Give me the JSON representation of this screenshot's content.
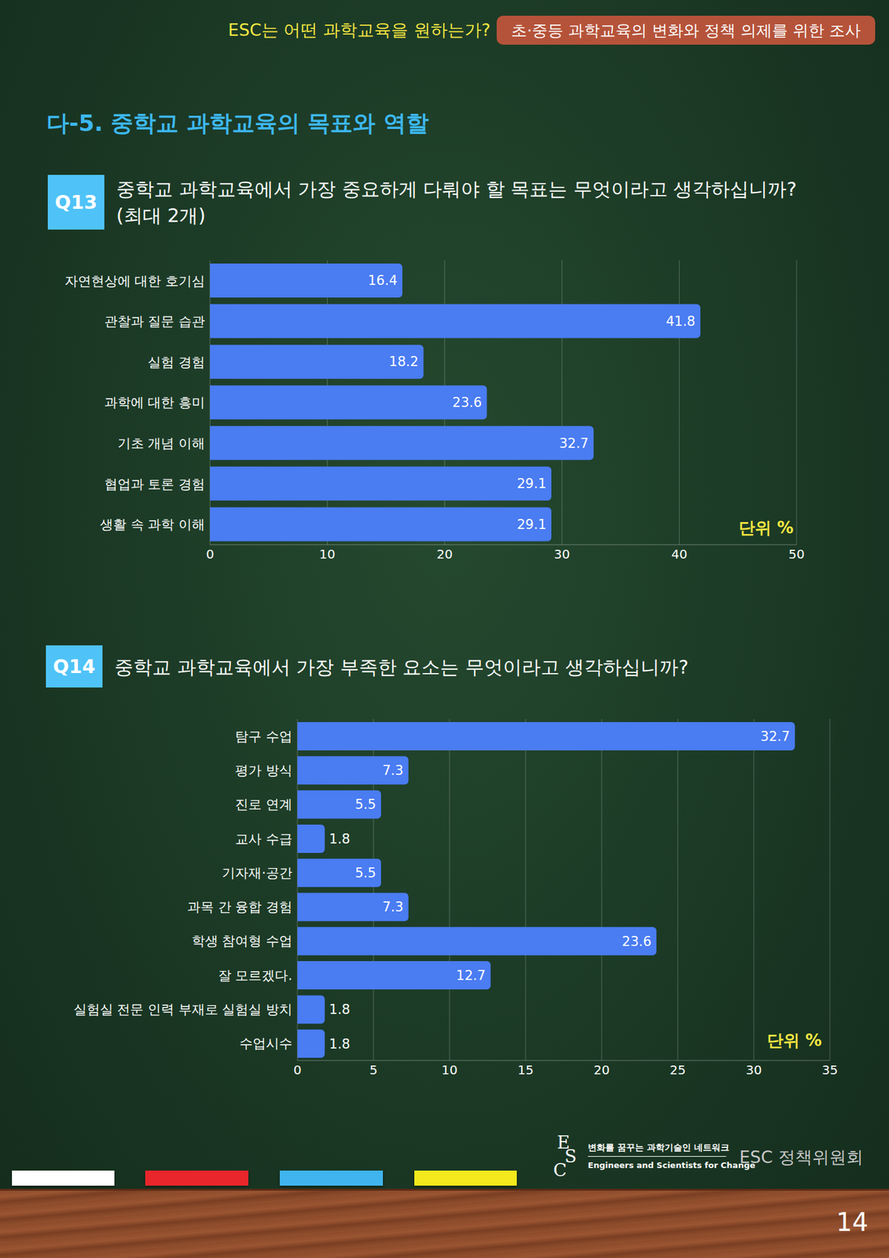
{
  "header": {
    "title": "ESC는 어떤 과학교육을 원하는가?",
    "badge": "초·중등 과학교육의 변화와 정책 의제를 위한 조사"
  },
  "section_title": "다-5. 중학교 과학교육의 목표와 역할",
  "chart_data": [
    {
      "type": "bar",
      "label": "Q13",
      "title": "중학교 과학교육에서 가장 중요하게 다뤄야 할 목표는 무엇이라고 생각하십니까?",
      "subtitle": "(최대 2개)",
      "annotations": [
        "단위 %"
      ],
      "categories": [
        "자연현상에 대한 호기심",
        "관찰과 질문 습관",
        "실험 경험",
        "과학에 대한 흥미",
        "기초 개념 이해",
        "협업과 토론 경험",
        "생활 속 과학 이해"
      ],
      "values": [
        16.4,
        41.8,
        18.2,
        23.6,
        32.7,
        29.1,
        29.1
      ],
      "color": "#4a7cf2",
      "xlim": [
        0,
        50
      ],
      "xticks": [
        0,
        10,
        20,
        30,
        40,
        50
      ],
      "grid": true,
      "orientation": "horizontal",
      "data_labels": true
    },
    {
      "type": "bar",
      "label": "Q14",
      "title": "중학교 과학교육에서 가장 부족한 요소는 무엇이라고 생각하십니까?",
      "annotations": [
        "단위 %"
      ],
      "categories": [
        "탐구 수업",
        "평가 방식",
        "진로 연계",
        "교사 수급",
        "기자재·공간",
        "과목 간 융합 경험",
        "학생 참여형 수업",
        "잘 모르겠다.",
        "실험실 전문 인력 부재로 실험실 방치",
        "수업시수"
      ],
      "values": [
        32.7,
        7.3,
        5.5,
        1.8,
        5.5,
        7.3,
        23.6,
        12.7,
        1.8,
        1.8
      ],
      "color": "#4a7cf2",
      "xlim": [
        0,
        35
      ],
      "xticks": [
        0,
        5,
        10,
        15,
        20,
        25,
        30,
        35
      ],
      "grid": true,
      "orientation": "horizontal",
      "data_labels": true
    }
  ],
  "footer": {
    "logo": "ESC",
    "network_name": "변화를 꿈꾸는 과학기술인 네트워크",
    "network_english": "Engineers and Scientists for Change",
    "committee": "ESC 정책위원회",
    "page": "14"
  }
}
